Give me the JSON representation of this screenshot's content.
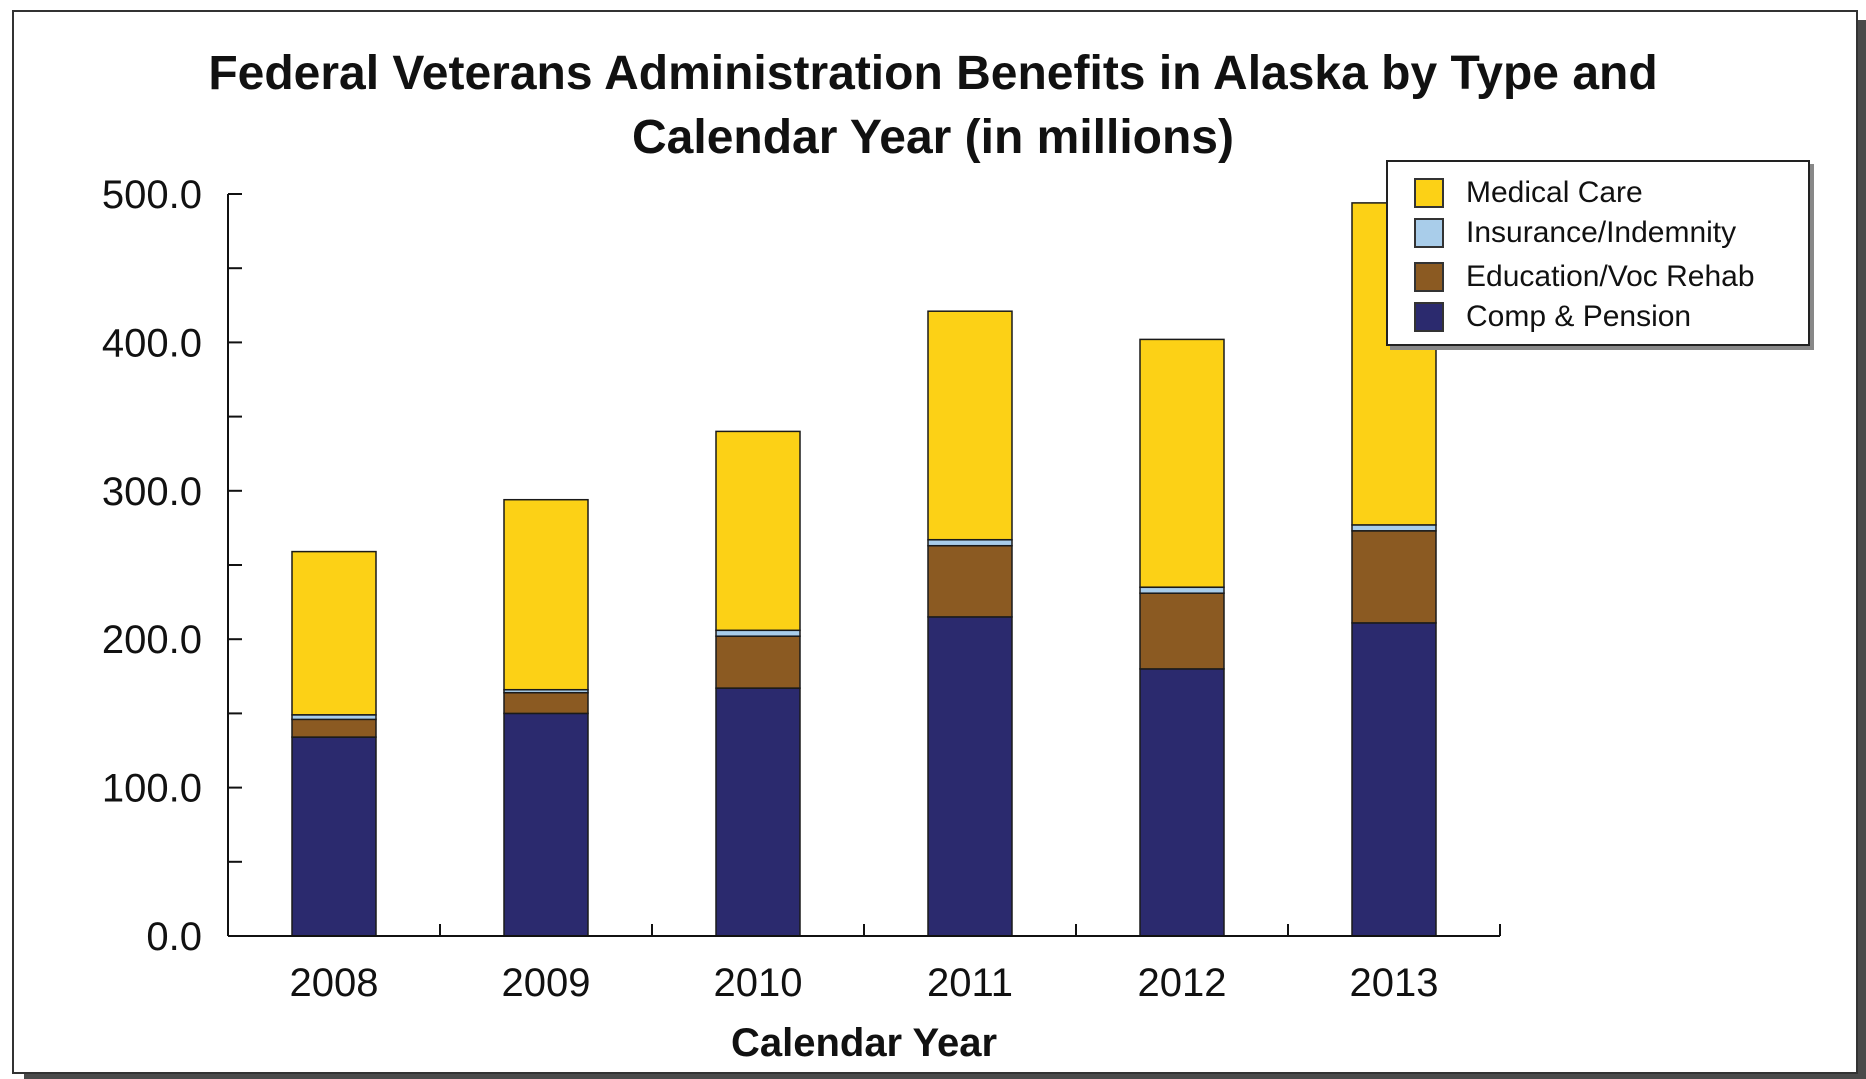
{
  "chart_data": {
    "type": "bar",
    "stacked": true,
    "title": "Federal Veterans Administration Benefits in Alaska by Type and Calendar Year (in millions)",
    "title_lines": [
      "Federal Veterans Administration Benefits in Alaska by Type and",
      "Calendar Year (in millions)"
    ],
    "xlabel": "Calendar Year",
    "ylabel": "",
    "ylim": [
      0,
      500
    ],
    "yticks": [
      "0.0",
      "100.0",
      "200.0",
      "300.0",
      "400.0",
      "500.0"
    ],
    "categories": [
      "2008",
      "2009",
      "2010",
      "2011",
      "2012",
      "2013"
    ],
    "legend_position": "top-right",
    "series": [
      {
        "name": "Comp & Pension",
        "color": "#2b2a6e",
        "values": [
          134,
          150,
          167,
          215,
          180,
          211
        ]
      },
      {
        "name": "Education/Voc Rehab",
        "color": "#8b5a22",
        "values": [
          12,
          14,
          35,
          48,
          51,
          62
        ]
      },
      {
        "name": "Insurance/Indemnity",
        "color": "#a9cdea",
        "values": [
          3,
          2,
          4,
          4,
          4,
          4
        ]
      },
      {
        "name": "Medical Care",
        "color": "#fcd116",
        "values": [
          110,
          128,
          134,
          154,
          167,
          217
        ]
      }
    ],
    "legend_order": [
      "Medical Care",
      "Insurance/Indemnity",
      "Education/Voc Rehab",
      "Comp & Pension"
    ]
  }
}
